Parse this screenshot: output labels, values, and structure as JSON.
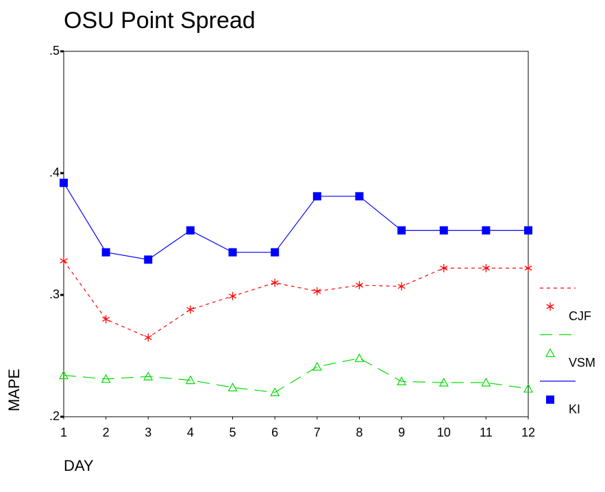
{
  "chart_data": {
    "type": "line",
    "title": "OSU Point Spread",
    "x_label": "DAY",
    "y_label": "MAPE",
    "x": [
      1,
      2,
      3,
      4,
      5,
      6,
      7,
      8,
      9,
      10,
      11,
      12
    ],
    "xlim": [
      1,
      12
    ],
    "xticks": [
      1,
      2,
      3,
      4,
      5,
      6,
      7,
      8,
      9,
      10,
      11,
      12
    ],
    "ylim": [
      0.2,
      0.5
    ],
    "yticks": [
      {
        "value": 0.2,
        "label": ".2"
      },
      {
        "value": 0.3,
        "label": ".3"
      },
      {
        "value": 0.4,
        "label": ".4"
      },
      {
        "value": 0.5,
        "label": ".5"
      }
    ],
    "legend": "right",
    "series": [
      {
        "name": "CJF",
        "color": "#ff0000",
        "marker": "asterisk",
        "line_style": "dotted",
        "values": [
          0.328,
          0.28,
          0.265,
          0.288,
          0.299,
          0.31,
          0.303,
          0.308,
          0.307,
          0.322,
          0.322,
          0.322
        ]
      },
      {
        "name": "VSM",
        "color": "#00dd00",
        "marker": "triangle",
        "line_style": "dashed",
        "values": [
          0.234,
          0.231,
          0.233,
          0.23,
          0.224,
          0.22,
          0.241,
          0.248,
          0.229,
          0.228,
          0.228,
          0.223
        ]
      },
      {
        "name": "KI",
        "color": "#0000ff",
        "marker": "square",
        "line_style": "solid",
        "values": [
          0.392,
          0.335,
          0.329,
          0.353,
          0.335,
          0.335,
          0.381,
          0.381,
          0.353,
          0.353,
          0.353,
          0.353
        ]
      }
    ]
  }
}
